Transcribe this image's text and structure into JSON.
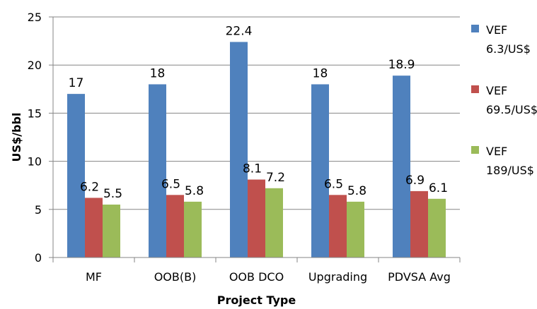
{
  "chart_data": {
    "type": "bar",
    "title": "",
    "xlabel": "Project Type",
    "ylabel": "US$/bbl",
    "ylim": [
      0,
      25
    ],
    "yticks": [
      0,
      5,
      10,
      15,
      20,
      25
    ],
    "grid": "horizontal",
    "legend_position": "right",
    "categories": [
      "MF",
      "OOB(B)",
      "OOB DCO",
      "Upgrading",
      "PDVSA Avg"
    ],
    "series": [
      {
        "name": "VEF 6.3/US$",
        "name_lines": [
          "VEF",
          "6.3/US$"
        ],
        "color": "#4f81bd",
        "values": [
          17,
          18,
          22.4,
          18,
          18.9
        ],
        "labels": [
          "17",
          "18",
          "22.4",
          "18",
          "18.9"
        ]
      },
      {
        "name": "VEF 69.5/US$",
        "name_lines": [
          "VEF",
          "69.5/US$"
        ],
        "color": "#c0504d",
        "values": [
          6.2,
          6.5,
          8.1,
          6.5,
          6.9
        ],
        "labels": [
          "6.2",
          "6.5",
          "8.1",
          "6.5",
          "6.9"
        ]
      },
      {
        "name": "VEF 189/US$",
        "name_lines": [
          "VEF",
          "189/US$"
        ],
        "color": "#9bbb59",
        "values": [
          5.5,
          5.8,
          7.2,
          5.8,
          6.1
        ],
        "labels": [
          "5.5",
          "5.8",
          "7.2",
          "5.8",
          "6.1"
        ]
      }
    ]
  }
}
